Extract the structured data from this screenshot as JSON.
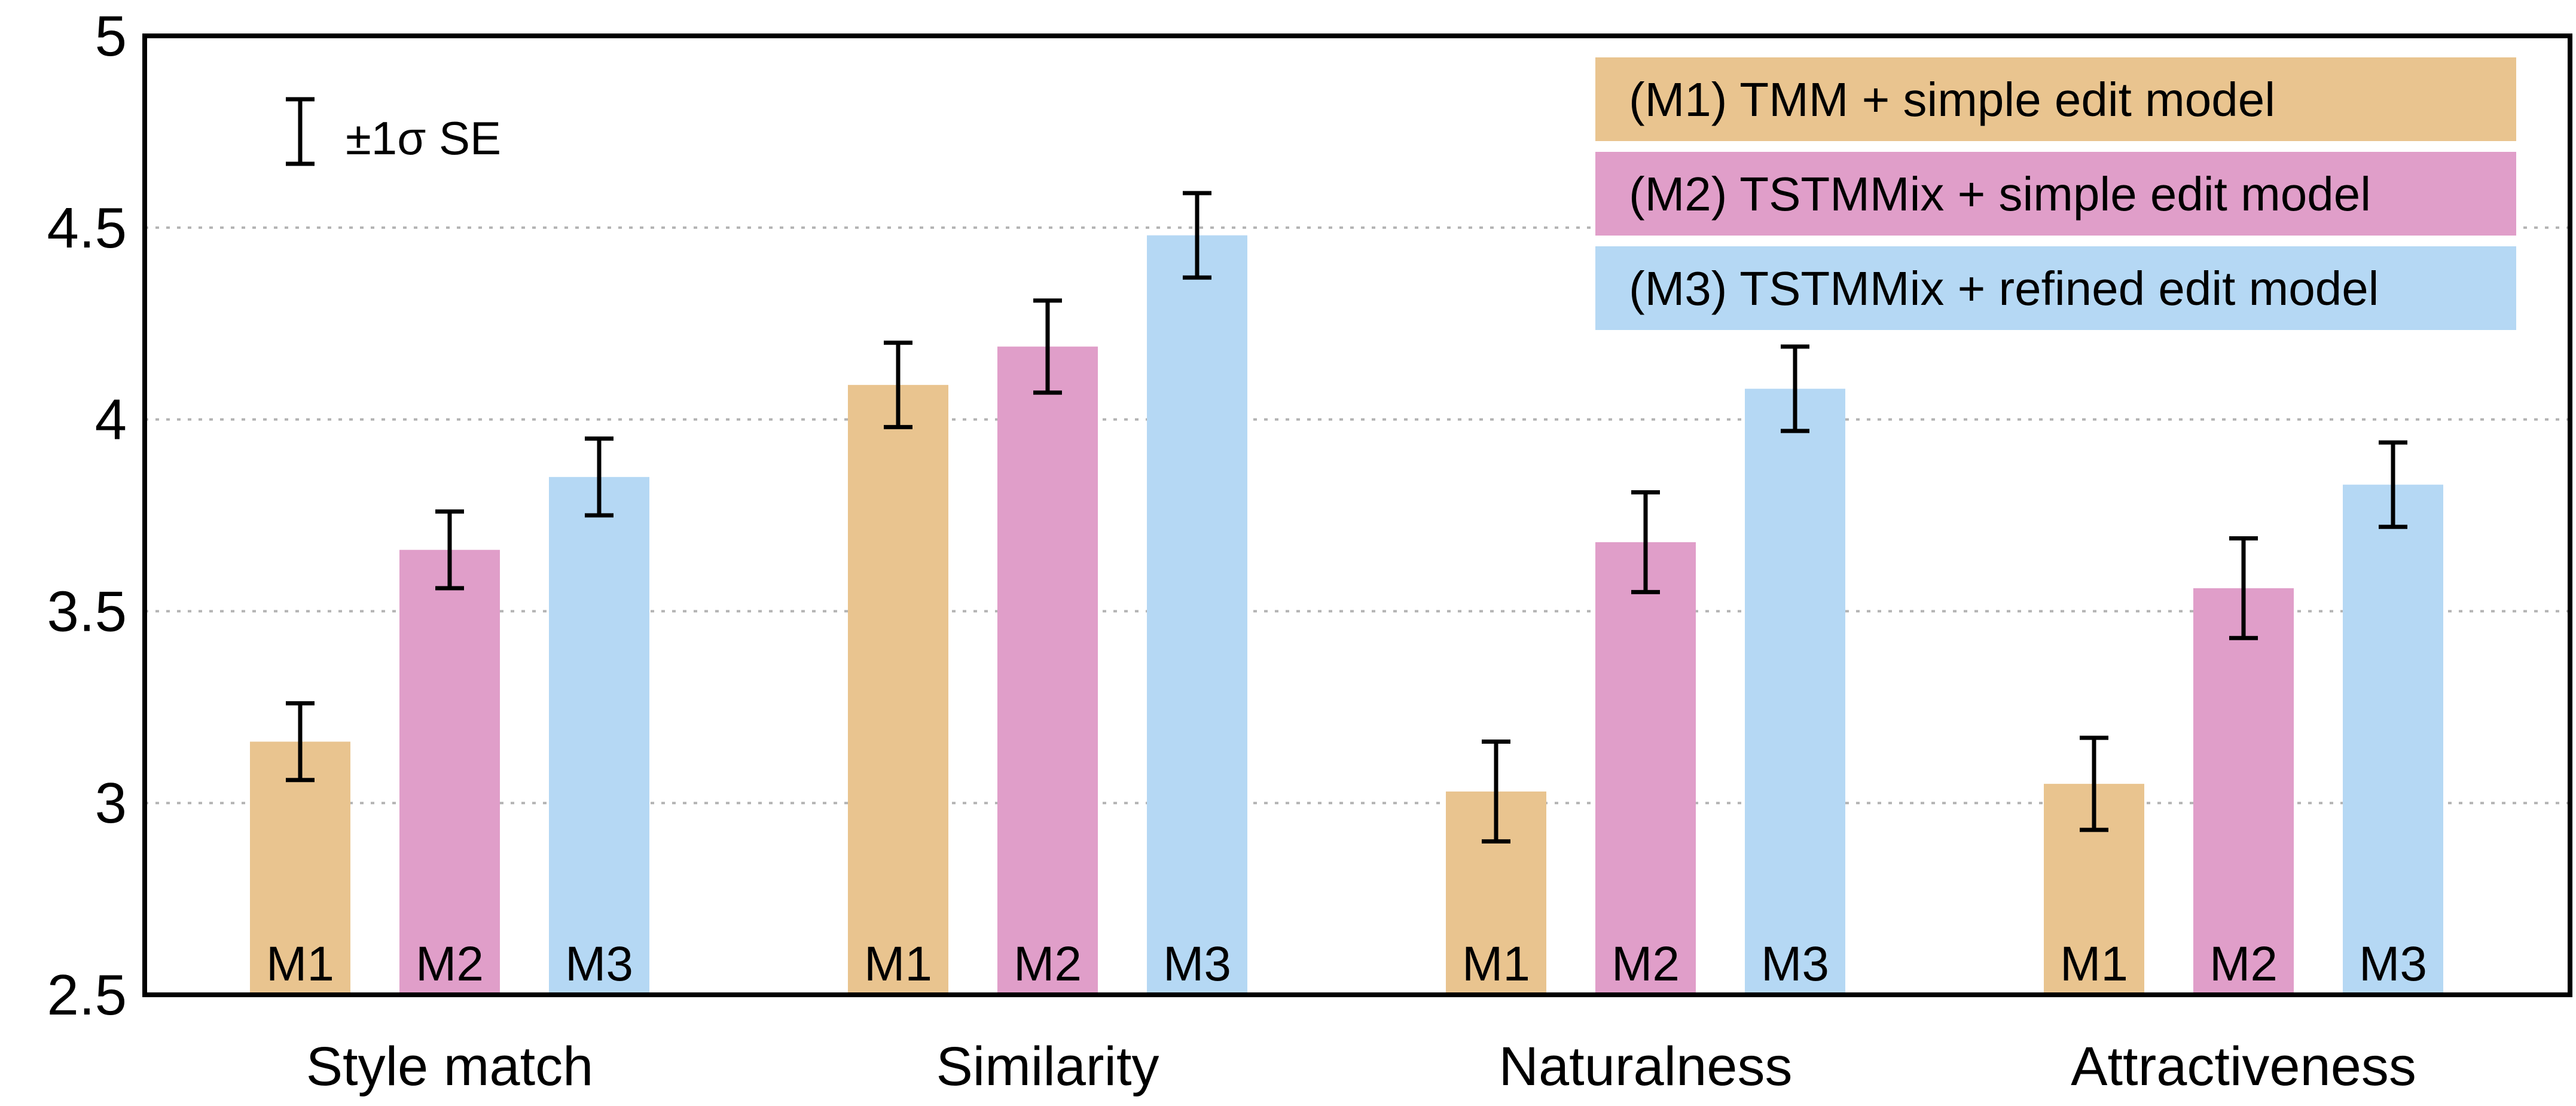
{
  "chart_data": {
    "type": "bar",
    "categories": [
      "Style match",
      "Similarity",
      "Naturalness",
      "Attractiveness"
    ],
    "series": [
      {
        "name": "(M1) TMM + simple edit model",
        "short": "M1",
        "color": "#E9C48F",
        "values": [
          3.16,
          4.09,
          3.03,
          3.05
        ],
        "errors": [
          0.1,
          0.11,
          0.13,
          0.12
        ]
      },
      {
        "name": "(M2) TSTMMix + simple edit model",
        "short": "M2",
        "color": "#E09EC9",
        "values": [
          3.66,
          4.19,
          3.68,
          3.56
        ],
        "errors": [
          0.1,
          0.12,
          0.13,
          0.13
        ]
      },
      {
        "name": "(M3) TSTMMix + refined edit model",
        "short": "M3",
        "color": "#B5D8F4",
        "values": [
          3.85,
          4.48,
          4.08,
          3.83
        ],
        "errors": [
          0.1,
          0.11,
          0.11,
          0.11
        ]
      }
    ],
    "ylim": [
      2.5,
      5
    ],
    "yticks": [
      "2.5",
      "3",
      "3.5",
      "4",
      "4.5",
      "5"
    ],
    "grid": "horizontal-dotted",
    "legend_position": "top-right",
    "error_bar_note": "±1σ SE",
    "xlabel": "",
    "ylabel": "",
    "title": ""
  }
}
